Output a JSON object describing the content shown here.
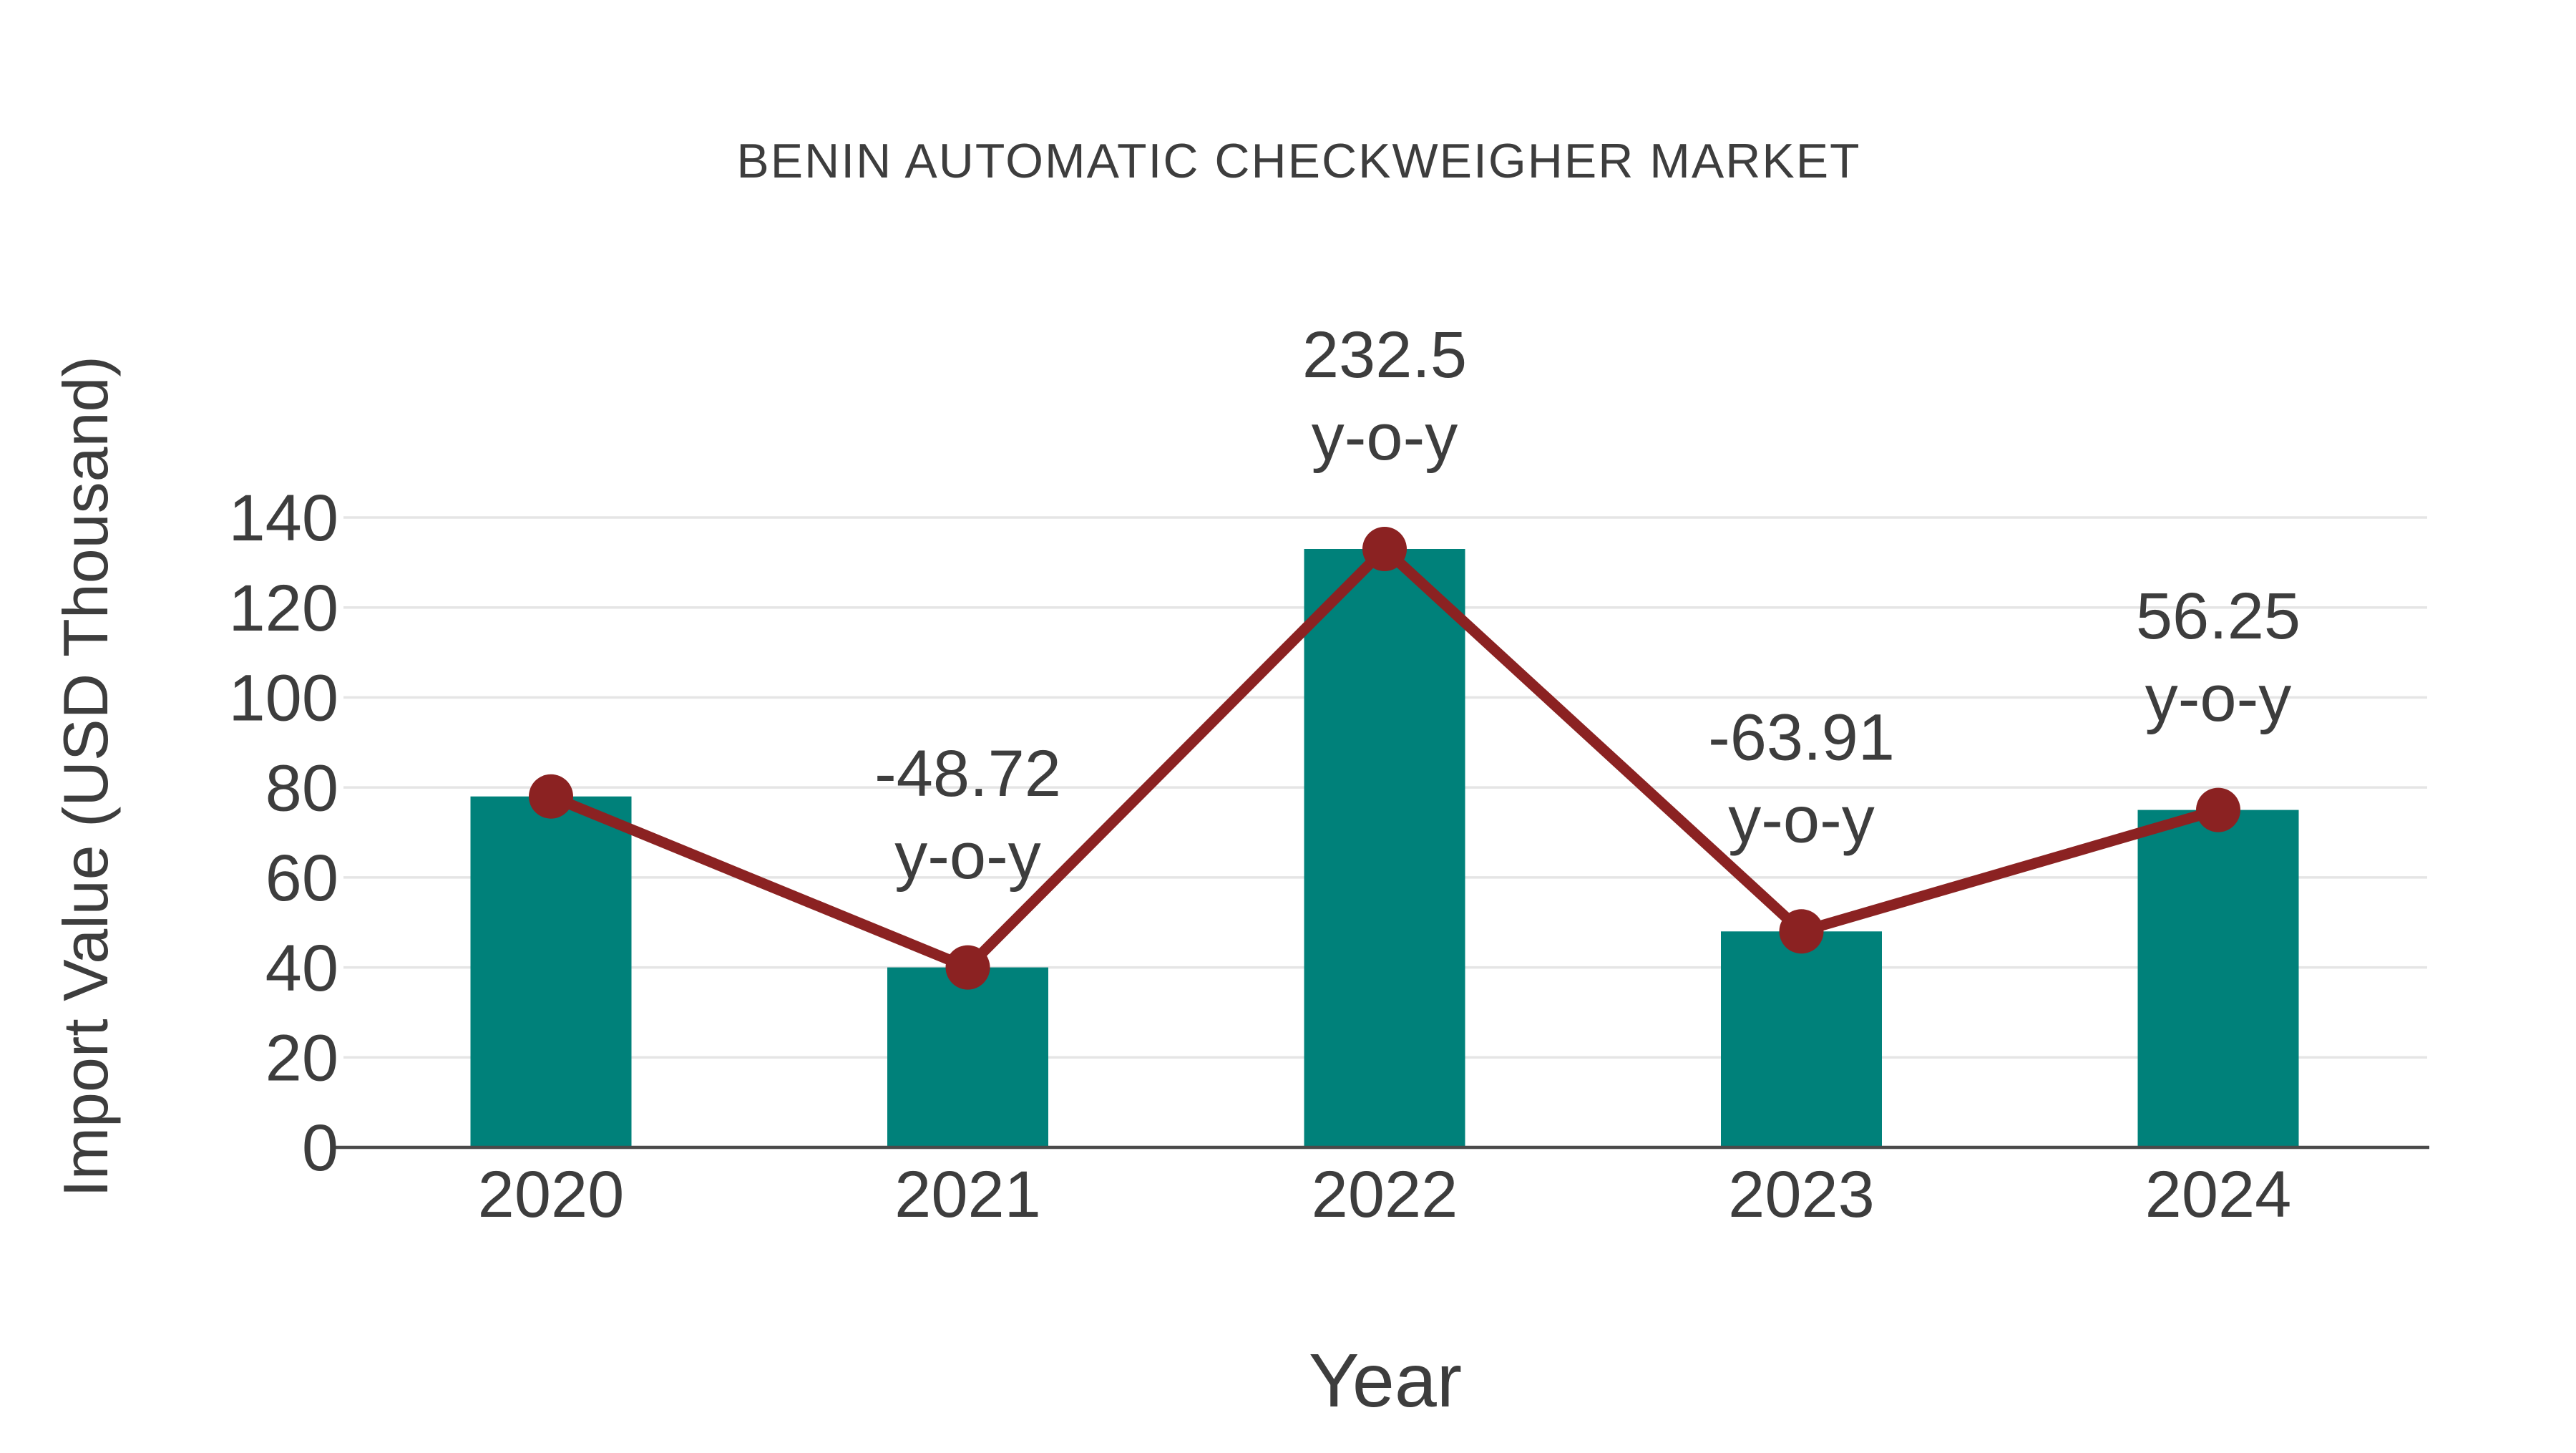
{
  "page": {
    "background_color": "#ffffff",
    "text_color": "#3d3d3d"
  },
  "chart_data": {
    "type": "bar",
    "title": "BENIN AUTOMATIC CHECKWEIGHER MARKET",
    "xlabel": "Year",
    "ylabel": "Import Value (USD Thousand)",
    "categories": [
      "2020",
      "2021",
      "2022",
      "2023",
      "2024"
    ],
    "series": [
      {
        "name": "Import Value (USD Thousand)",
        "chart_type": "bar",
        "color": "#00817a",
        "values": [
          78,
          40,
          133,
          48,
          75
        ]
      },
      {
        "name": "Year-over-year trend line",
        "chart_type": "line",
        "color": "#8B2222",
        "values": [
          78,
          40,
          133,
          48,
          75
        ]
      }
    ],
    "annotations": [
      {
        "category": "2021",
        "line1": "-48.72",
        "line2": "y-o-y"
      },
      {
        "category": "2022",
        "line1": "232.5",
        "line2": "y-o-y"
      },
      {
        "category": "2023",
        "line1": "-63.91",
        "line2": "y-o-y"
      },
      {
        "category": "2024",
        "line1": "56.25",
        "line2": "y-o-y"
      }
    ],
    "ylim": [
      0,
      140
    ],
    "yticks": [
      0,
      20,
      40,
      60,
      80,
      100,
      120,
      140
    ],
    "grid": true,
    "grid_color": "#e5e5e5",
    "axis_color": "#4a4a4a",
    "legend_position": "none"
  }
}
